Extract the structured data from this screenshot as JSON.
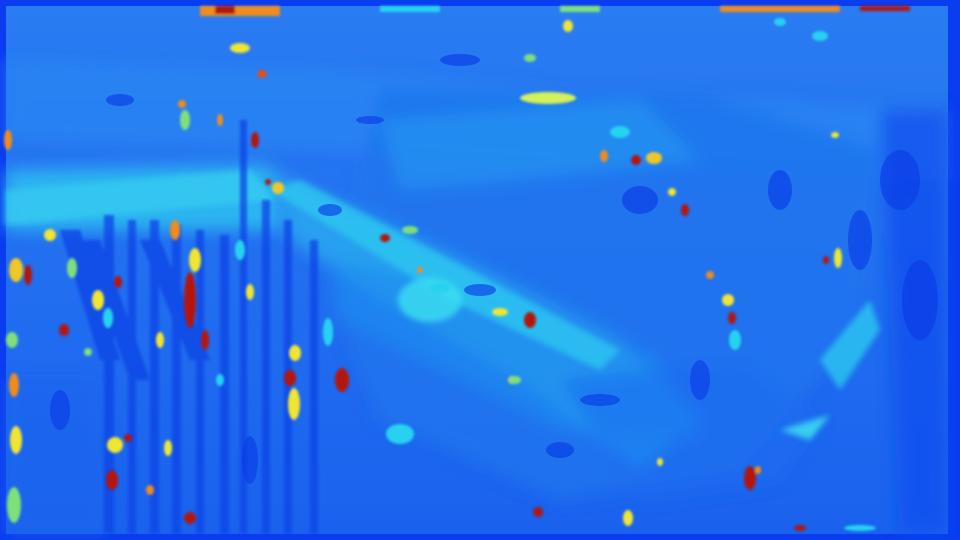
{
  "image": {
    "kind": "disparity-map",
    "colormap": "jet",
    "colors": {
      "frame": "#0a3cf0",
      "background": "#1a64f0",
      "mid": "#1e8cf0",
      "cyan": "#28d2f0",
      "green": "#7fe07a",
      "yellow": "#f0e632",
      "orange": "#f08c1e",
      "red": "#b4140a"
    }
  }
}
